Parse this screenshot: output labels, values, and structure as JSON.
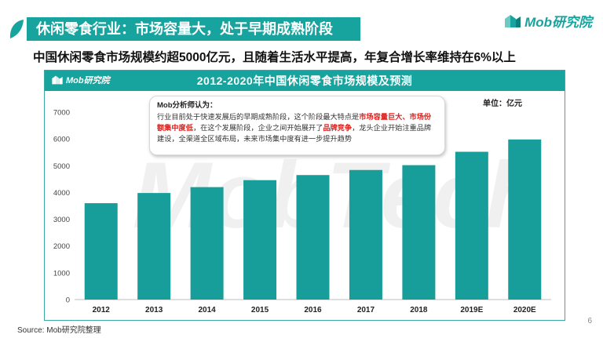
{
  "header": {
    "title": "休闲零食行业：市场容量大，处于早期成熟阶段",
    "subtitle": "中国休闲零食市场规模约超5000亿元，且随着生活水平提高，年复合增长率维持在6%以上",
    "brand": "Mob研究院"
  },
  "chart_data": {
    "type": "bar",
    "title": "2012-2020年中国休闲零食市场规模及预测",
    "unit_label": "单位：亿元",
    "categories": [
      "2012",
      "2013",
      "2014",
      "2015",
      "2016",
      "2017",
      "2018",
      "2019E",
      "2020E"
    ],
    "values": [
      3600,
      3980,
      4200,
      4460,
      4650,
      4840,
      5020,
      5520,
      5980
    ],
    "yticks": [
      0,
      1000,
      2000,
      3000,
      4000,
      5000,
      6000,
      7000
    ],
    "ylim": [
      0,
      7000
    ],
    "bar_color": "#179e9a",
    "watermark": "MobTech"
  },
  "analyst_note": {
    "title": "Mob分析师认为：",
    "part1": "行业目前处于快速发展后的早期成熟阶段，这个阶段最大特点是",
    "highlight1": "市场容量巨大、市场份额集中度低",
    "part2": "，在这个发展阶段，企业之间开始展开了",
    "highlight2": "品牌竞争",
    "part3": "，龙头企业开始注重品牌建设，全渠道全区域布局，未来市场集中度有进一步提升趋势"
  },
  "footer": {
    "source": "Source:  Mob研究院整理",
    "page": "6"
  },
  "colors": {
    "accent": "#17a49e",
    "highlight": "#e0211d"
  }
}
